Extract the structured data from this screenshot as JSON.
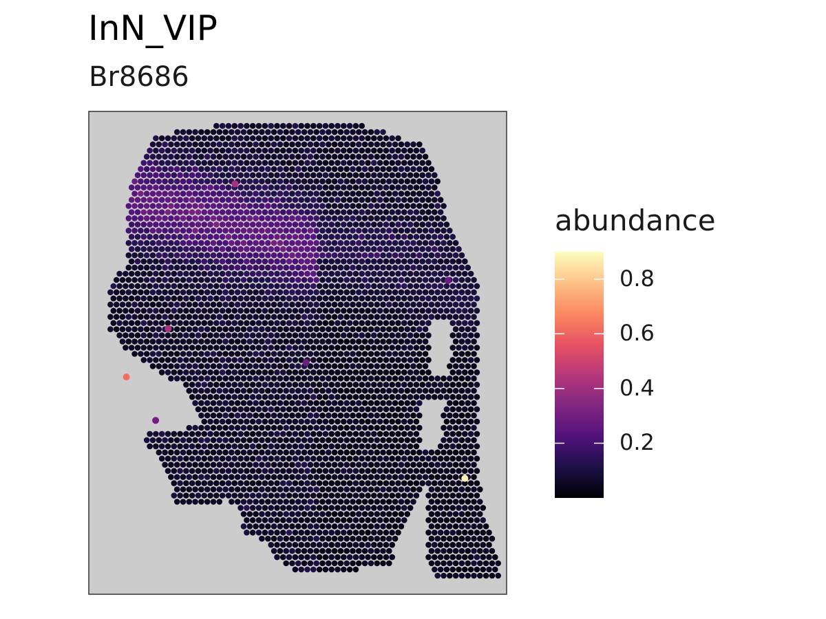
{
  "chart_data": {
    "type": "scatter",
    "title": "InN_VIP",
    "subtitle": "Br8686",
    "panel_background": "#cccccc",
    "panel_border": "#333333",
    "legend": {
      "title": "abundance",
      "placement": "right",
      "colormap": "magma",
      "range": [
        0.0,
        0.9
      ],
      "ticks": [
        {
          "value": 0.8,
          "label": "0.8"
        },
        {
          "value": 0.6,
          "label": "0.6"
        },
        {
          "value": 0.4,
          "label": "0.4"
        },
        {
          "value": 0.2,
          "label": "0.2"
        }
      ]
    },
    "magma_stops": [
      "#000004",
      "#1d1147",
      "#51127c",
      "#822681",
      "#b73779",
      "#e75263",
      "#fc8961",
      "#fec287",
      "#fcfdbf"
    ],
    "highlighted_spots": [
      {
        "x": 0.09,
        "y": 0.55,
        "abundance": 0.62
      },
      {
        "x": 0.19,
        "y": 0.45,
        "abundance": 0.42
      },
      {
        "x": 0.35,
        "y": 0.15,
        "abundance": 0.42
      },
      {
        "x": 0.9,
        "y": 0.76,
        "abundance": 0.88
      },
      {
        "x": 0.86,
        "y": 0.35,
        "abundance": 0.28
      },
      {
        "x": 0.52,
        "y": 0.52,
        "abundance": 0.3
      },
      {
        "x": 0.16,
        "y": 0.64,
        "abundance": 0.3
      }
    ]
  }
}
